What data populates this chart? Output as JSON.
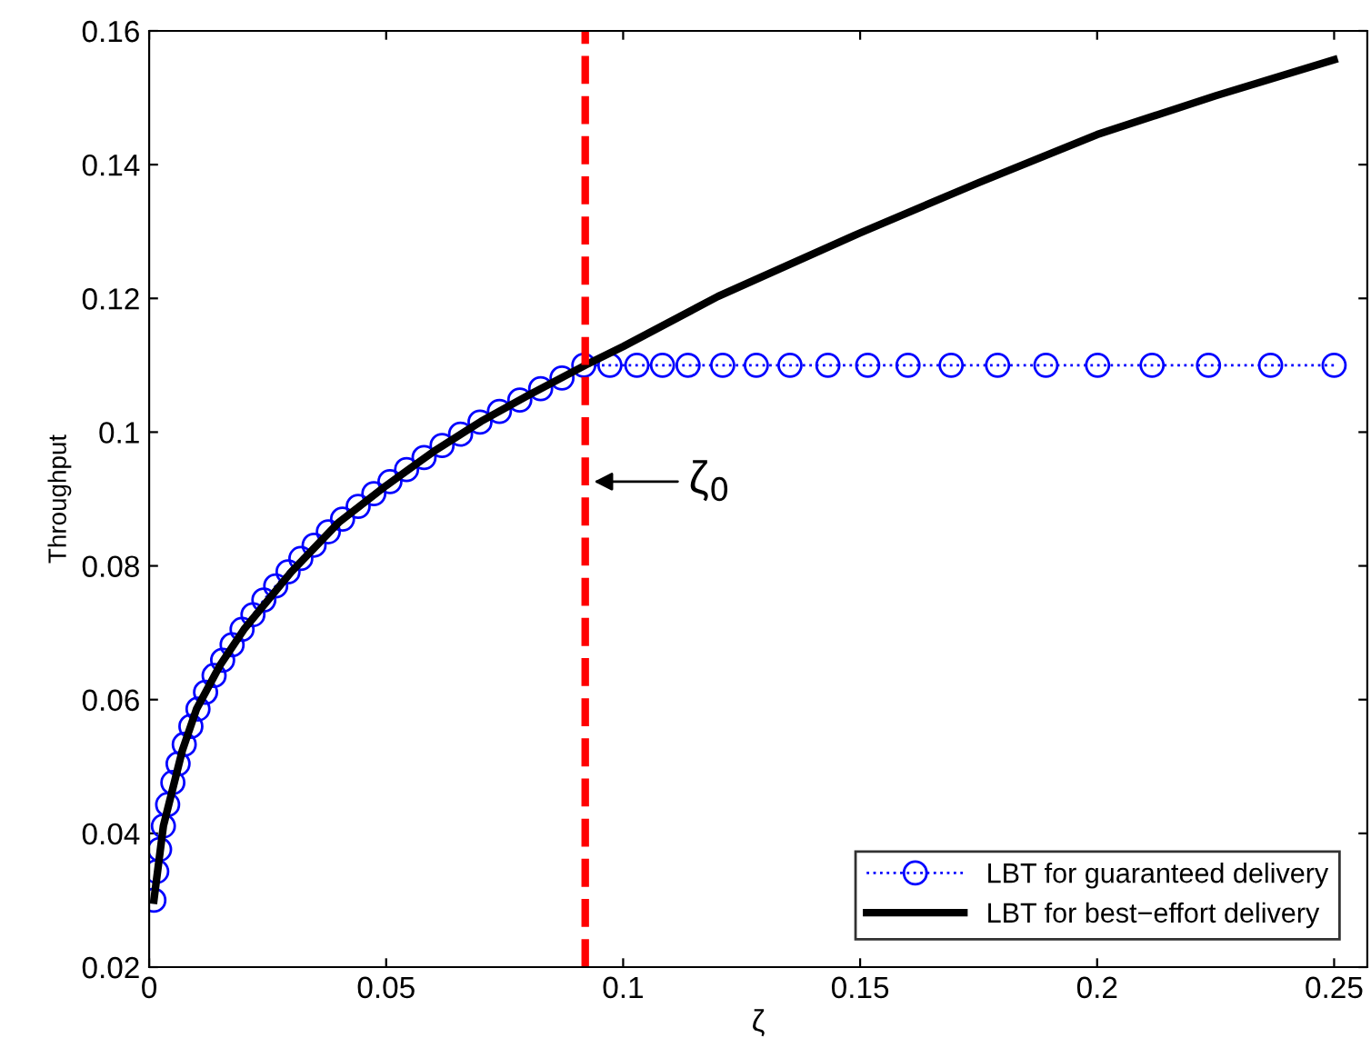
{
  "chart_data": {
    "type": "line",
    "xlabel": "ζ",
    "ylabel": "Throughput",
    "xlim": [
      0,
      0.257
    ],
    "ylim": [
      0.02,
      0.16
    ],
    "xticks": [
      0,
      0.05,
      0.1,
      0.15,
      0.2,
      0.25
    ],
    "yticks": [
      0.02,
      0.04,
      0.06,
      0.08,
      0.1,
      0.12,
      0.14,
      0.16
    ],
    "grid": false,
    "legend": "bottom right",
    "series": [
      {
        "name": "LBT for guaranteed delivery",
        "color": "#0000ff",
        "marker": "circle",
        "line_style": "dotted",
        "x": [
          0.001,
          0.0016,
          0.0022,
          0.003,
          0.0039,
          0.005,
          0.0061,
          0.0074,
          0.0088,
          0.0103,
          0.0119,
          0.0137,
          0.0155,
          0.0175,
          0.0196,
          0.0219,
          0.0242,
          0.0267,
          0.0293,
          0.032,
          0.0348,
          0.0378,
          0.0408,
          0.0441,
          0.0474,
          0.0508,
          0.0543,
          0.058,
          0.0618,
          0.0657,
          0.0698,
          0.0739,
          0.0782,
          0.0826,
          0.0871,
          0.0917,
          0.0972,
          0.1029,
          0.1083,
          0.1137,
          0.121,
          0.1281,
          0.1352,
          0.1432,
          0.1516,
          0.1601,
          0.1692,
          0.179,
          0.1892,
          0.2001,
          0.2116,
          0.2235,
          0.2366,
          0.25
        ],
        "values": [
          0.03,
          0.0343,
          0.0376,
          0.0411,
          0.0443,
          0.0476,
          0.0504,
          0.0533,
          0.056,
          0.0586,
          0.0611,
          0.0636,
          0.0659,
          0.0682,
          0.0705,
          0.0727,
          0.0749,
          0.077,
          0.0791,
          0.0811,
          0.0831,
          0.0851,
          0.087,
          0.0889,
          0.0908,
          0.0926,
          0.0944,
          0.0962,
          0.098,
          0.0997,
          0.1015,
          0.1031,
          0.1048,
          0.1065,
          0.1081,
          0.11,
          0.11,
          0.11,
          0.11,
          0.11,
          0.11,
          0.11,
          0.11,
          0.11,
          0.11,
          0.11,
          0.11,
          0.11,
          0.11,
          0.11,
          0.11,
          0.11,
          0.11,
          0.11
        ]
      },
      {
        "name": "LBT for best−effort delivery",
        "color": "#000000",
        "marker": "none",
        "line_style": "solid",
        "x": [
          0.001,
          0.003,
          0.007,
          0.01,
          0.015,
          0.02,
          0.03,
          0.04,
          0.05,
          0.06,
          0.07,
          0.08,
          0.092,
          0.1,
          0.12,
          0.15,
          0.175,
          0.2,
          0.225,
          0.25
        ],
        "values": [
          0.03,
          0.0411,
          0.0524,
          0.0586,
          0.0652,
          0.0705,
          0.0791,
          0.0865,
          0.092,
          0.0971,
          0.1016,
          0.1055,
          0.11,
          0.1128,
          0.1203,
          0.1298,
          0.1373,
          0.1445,
          0.1503,
          0.1557
        ]
      }
    ],
    "ref_lines": [
      {
        "axis": "x",
        "value": 0.092,
        "color": "#ff0000",
        "line_style": "dashed"
      }
    ],
    "annotations": [
      {
        "text": "ζ$_{0}$",
        "x": 0.092,
        "y": 0.0926
      }
    ]
  }
}
